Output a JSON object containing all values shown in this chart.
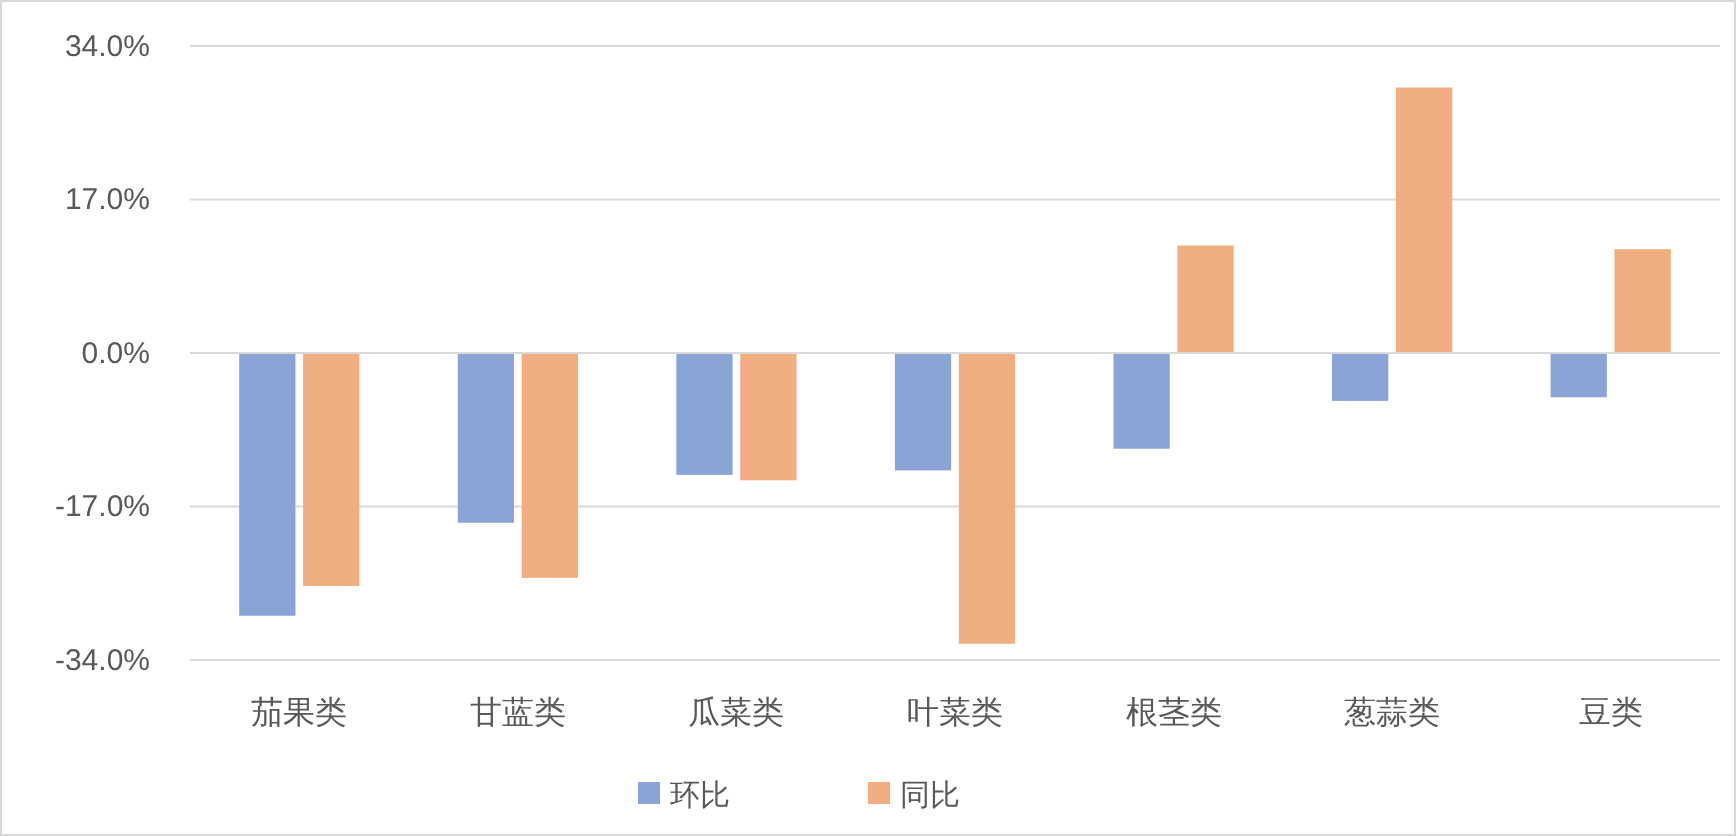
{
  "chart_data": {
    "type": "bar",
    "categories": [
      "茄果类",
      "甘蓝类",
      "瓜菜类",
      "叶菜类",
      "根茎类",
      "葱蒜类",
      "豆类"
    ],
    "series": [
      {
        "name": "环比",
        "color": "#8aa4d6",
        "values": [
          -29.1,
          -18.8,
          -13.5,
          -13.0,
          -10.6,
          -5.3,
          -4.9
        ]
      },
      {
        "name": "同比",
        "color": "#f0ad80",
        "values": [
          -25.8,
          -24.9,
          -14.1,
          -32.2,
          11.9,
          29.4,
          11.5
        ]
      }
    ],
    "ylim": [
      -34,
      34
    ],
    "yticks": [
      {
        "value": -34,
        "label": "-34.0%"
      },
      {
        "value": -17,
        "label": "-17.0%"
      },
      {
        "value": 0,
        "label": "0.0%"
      },
      {
        "value": 17,
        "label": "17.0%"
      },
      {
        "value": 34,
        "label": "34.0%"
      }
    ],
    "grid": "y",
    "legend": "bottom"
  }
}
